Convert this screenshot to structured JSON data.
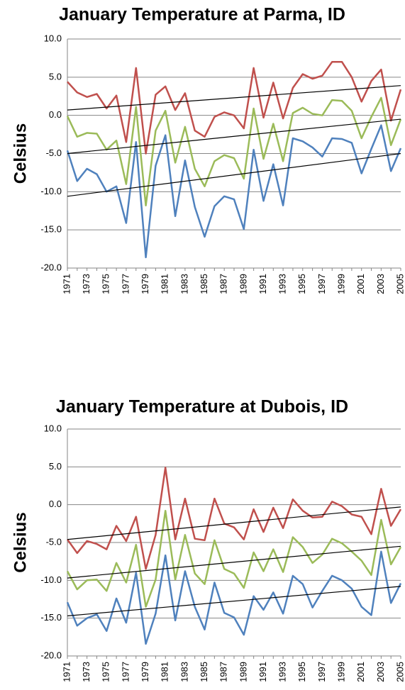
{
  "chart_data": [
    {
      "type": "line",
      "title": "January Temperature at Parma, ID",
      "y_label": "Celsius",
      "categories": [
        "1971",
        null,
        "1973",
        null,
        "1975",
        null,
        "1977",
        null,
        "1979",
        null,
        "1981",
        null,
        "1983",
        null,
        "1985",
        null,
        "1987",
        null,
        "1989",
        null,
        "1991",
        null,
        "1993",
        null,
        "1995",
        null,
        "1997",
        null,
        "1999",
        null,
        "2001",
        null,
        "2003",
        null,
        "2005"
      ],
      "series": [
        {
          "color": "#c0504d",
          "values": [
            4.4,
            3.0,
            2.4,
            2.8,
            0.9,
            2.6,
            -3.5,
            6.2,
            -5.0,
            2.7,
            3.8,
            0.7,
            2.9,
            -2.0,
            -2.8,
            -0.2,
            0.4,
            0.0,
            -1.7,
            6.2,
            -0.3,
            4.3,
            -0.4,
            3.6,
            5.4,
            4.8,
            5.2,
            7.0,
            7.0,
            5.0,
            1.8,
            4.5,
            6.0,
            -0.7,
            3.4
          ]
        },
        {
          "color": "#9bbb59",
          "values": [
            -0.1,
            -2.8,
            -2.3,
            -2.4,
            -4.5,
            -3.3,
            -9.0,
            1.1,
            -11.8,
            -2.0,
            0.6,
            -6.2,
            -1.5,
            -7.0,
            -9.3,
            -6.0,
            -5.2,
            -5.6,
            -8.3,
            0.9,
            -5.7,
            -1.1,
            -6.0,
            0.3,
            1.0,
            0.2,
            0.0,
            2.0,
            1.9,
            0.6,
            -3.0,
            -0.2,
            2.3,
            -3.9,
            -0.5
          ]
        },
        {
          "color": "#4f81bd",
          "values": [
            -4.6,
            -8.6,
            -7.0,
            -7.7,
            -10.0,
            -9.3,
            -14.1,
            -3.5,
            -18.6,
            -6.6,
            -2.6,
            -13.2,
            -5.9,
            -12.0,
            -15.9,
            -11.9,
            -10.6,
            -11.0,
            -14.9,
            -4.5,
            -11.2,
            -6.4,
            -11.8,
            -3.0,
            -3.4,
            -4.2,
            -5.4,
            -3.0,
            -3.1,
            -3.6,
            -7.6,
            -4.4,
            -1.3,
            -7.3,
            -4.3
          ]
        }
      ],
      "trendlines": [
        {
          "color": "#000000",
          "values": [
            0.7,
            3.9
          ]
        },
        {
          "color": "#000000",
          "values": [
            -5.0,
            -0.5
          ]
        },
        {
          "color": "#000000",
          "values": [
            -10.6,
            -5.0
          ]
        }
      ],
      "ylim": [
        -20,
        10
      ],
      "yticks": [
        {
          "value": -20,
          "label": "-20.0"
        },
        {
          "value": -15,
          "label": "-15.0"
        },
        {
          "value": -10,
          "label": "-10.0"
        },
        {
          "value": -5,
          "label": "-5.0"
        },
        {
          "value": 0,
          "label": "0.0"
        },
        {
          "value": 5,
          "label": "5.0"
        },
        {
          "value": 10,
          "label": "10.0"
        }
      ],
      "grid": true
    },
    {
      "type": "line",
      "title": "January Temperature at Dubois, ID",
      "y_label": "Celsius",
      "categories": [
        "1971",
        null,
        "1973",
        null,
        "1975",
        null,
        "1977",
        null,
        "1979",
        null,
        "1981",
        null,
        "1983",
        null,
        "1985",
        null,
        "1987",
        null,
        "1989",
        null,
        "1991",
        null,
        "1993",
        null,
        "1995",
        null,
        "1997",
        null,
        "1999",
        null,
        "2001",
        null,
        "2003",
        null,
        "2005"
      ],
      "series": [
        {
          "color": "#c0504d",
          "values": [
            -4.6,
            -6.4,
            -4.8,
            -5.2,
            -5.9,
            -2.8,
            -4.8,
            -1.6,
            -8.5,
            -4.0,
            4.9,
            -4.6,
            0.8,
            -4.5,
            -4.7,
            0.8,
            -2.5,
            -3.0,
            -4.6,
            -0.6,
            -3.6,
            -0.4,
            -3.1,
            0.7,
            -0.8,
            -1.7,
            -1.6,
            0.4,
            -0.2,
            -1.3,
            -1.6,
            -3.9,
            2.1,
            -2.8,
            -0.6
          ]
        },
        {
          "color": "#9bbb59",
          "values": [
            -8.8,
            -11.2,
            -10.0,
            -9.9,
            -11.4,
            -7.7,
            -10.3,
            -5.3,
            -13.5,
            -9.9,
            -0.8,
            -9.9,
            -4.0,
            -9.1,
            -10.5,
            -4.7,
            -8.5,
            -9.1,
            -11.0,
            -6.3,
            -8.8,
            -5.9,
            -8.9,
            -4.3,
            -5.6,
            -7.7,
            -6.6,
            -4.5,
            -5.1,
            -6.2,
            -7.4,
            -9.3,
            -2.0,
            -7.9,
            -5.6
          ]
        },
        {
          "color": "#4f81bd",
          "values": [
            -12.9,
            -16.0,
            -15.0,
            -14.5,
            -16.7,
            -12.4,
            -15.6,
            -9.0,
            -18.4,
            -14.4,
            -6.7,
            -15.3,
            -8.8,
            -13.5,
            -16.5,
            -10.3,
            -14.3,
            -14.9,
            -17.2,
            -12.1,
            -13.9,
            -11.6,
            -14.4,
            -9.4,
            -10.5,
            -13.6,
            -11.4,
            -9.4,
            -10.0,
            -11.1,
            -13.5,
            -14.6,
            -6.2,
            -13.0,
            -10.4
          ]
        }
      ],
      "trendlines": [
        {
          "color": "#000000",
          "values": [
            -4.6,
            -0.3
          ]
        },
        {
          "color": "#000000",
          "values": [
            -9.7,
            -5.5
          ]
        },
        {
          "color": "#000000",
          "values": [
            -14.7,
            -10.8
          ]
        }
      ],
      "ylim": [
        -20,
        10
      ],
      "yticks": [
        {
          "value": -20,
          "label": "-20.0"
        },
        {
          "value": -15,
          "label": "-15.0"
        },
        {
          "value": -10,
          "label": "-10.0"
        },
        {
          "value": -5,
          "label": "-5.0"
        },
        {
          "value": 0,
          "label": "0.0"
        },
        {
          "value": 5,
          "label": "5.0"
        },
        {
          "value": 10,
          "label": "10.0"
        }
      ],
      "grid": true
    }
  ]
}
